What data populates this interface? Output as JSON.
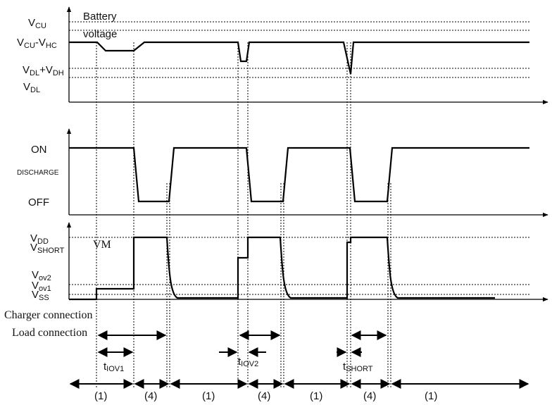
{
  "labels": {
    "vcu_main": "V",
    "vcu_sub": "CU",
    "battery_voltage_1": "Battery",
    "battery_voltage_2": "voltage",
    "vcu_vhc_main1": "V",
    "vcu_vhc_sub1": "CU",
    "vcu_vhc_dash": "-V",
    "vcu_vhc_sub2": "HC",
    "vdl_vdh_main1": "V",
    "vdl_vdh_sub1": "DL",
    "vdl_vdh_plus": "+V",
    "vdl_vdh_sub2": "DH",
    "vdl_main": "V",
    "vdl_sub": "DL",
    "on": "ON",
    "discharge": "DISCHARGE",
    "off": "OFF",
    "vdd_main": "V",
    "vdd_sub": "DD",
    "vshort_main": "V",
    "vshort_sub": "SHORT",
    "vm": "VM",
    "vov2_main": "V",
    "vov2_sub": "ov2",
    "vov1_main": "V",
    "vov1_sub": "ov1",
    "vss_main": "V",
    "vss_sub": "SS",
    "charger_connection": "Charger connection",
    "load_connection": "Load connection",
    "tiov1_main": "t",
    "tiov1_sub": "IOV1",
    "tiov2_main": "t",
    "tiov2_sub": "IOV2",
    "tshort_main": "t",
    "tshort_sub": "SHORT"
  },
  "phases": [
    "(1)",
    "(4)",
    "(1)",
    "(4)",
    "(1)",
    "(4)",
    "(1)"
  ]
}
